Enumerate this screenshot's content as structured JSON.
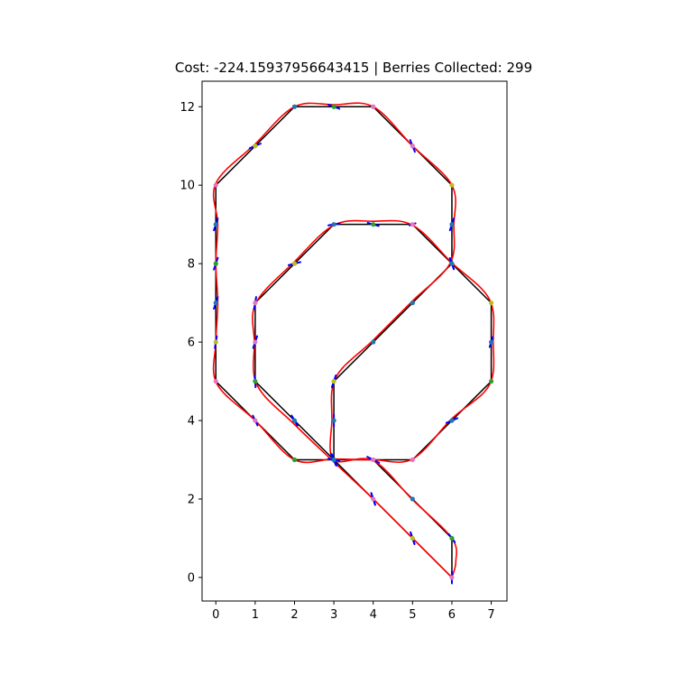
{
  "chart_data": {
    "type": "line",
    "title": "Cost: -224.15937956643415 | Berries Collected: 299",
    "xlabel": "",
    "ylabel": "",
    "xlim": [
      -0.35,
      7.4
    ],
    "ylim": [
      -0.6,
      12.65
    ],
    "x_ticks": [
      0,
      1,
      2,
      3,
      4,
      5,
      6,
      7
    ],
    "y_ticks": [
      0,
      2,
      4,
      6,
      8,
      10,
      12
    ],
    "grid": false,
    "legend": "none",
    "colors": {
      "track": "#000000",
      "smooth_path": "#ff0000",
      "heading_arrows": "#0000ff"
    },
    "series": [
      {
        "kind": "track",
        "points": [
          [
            6,
            0
          ],
          [
            5,
            1
          ],
          [
            4,
            2
          ],
          [
            3,
            3
          ],
          [
            2,
            4
          ],
          [
            1,
            5
          ],
          [
            1,
            6
          ],
          [
            1,
            7
          ],
          [
            2,
            8
          ],
          [
            3,
            9
          ],
          [
            4,
            9
          ],
          [
            5,
            9
          ],
          [
            6,
            8
          ],
          [
            7,
            7
          ],
          [
            7,
            6
          ],
          [
            7,
            5
          ],
          [
            6,
            4
          ],
          [
            5,
            3
          ],
          [
            4,
            3
          ],
          [
            3,
            3
          ],
          [
            2,
            3
          ],
          [
            1,
            4
          ],
          [
            0,
            5
          ],
          [
            0,
            6
          ],
          [
            0,
            7
          ],
          [
            0,
            8
          ],
          [
            0,
            9
          ],
          [
            0,
            10
          ],
          [
            1,
            11
          ],
          [
            2,
            12
          ],
          [
            3,
            12
          ],
          [
            4,
            12
          ],
          [
            5,
            11
          ],
          [
            6,
            10
          ],
          [
            6,
            9
          ],
          [
            6,
            8
          ],
          [
            5,
            7
          ],
          [
            4,
            6
          ],
          [
            3,
            5
          ],
          [
            3,
            4
          ],
          [
            3,
            3
          ],
          [
            4,
            3
          ],
          [
            5,
            2
          ],
          [
            6,
            1
          ],
          [
            6,
            0
          ]
        ]
      },
      {
        "kind": "smooth_path",
        "points": [
          [
            6,
            0
          ],
          [
            5,
            1
          ],
          [
            4,
            2
          ],
          [
            3.1,
            2.85
          ],
          [
            2,
            3.9
          ],
          [
            1.05,
            4.9
          ],
          [
            0.98,
            6
          ],
          [
            1.02,
            7
          ],
          [
            2,
            8.05
          ],
          [
            3,
            8.98
          ],
          [
            4,
            9.08
          ],
          [
            5,
            8.98
          ],
          [
            6,
            8.02
          ],
          [
            6.95,
            7.1
          ],
          [
            7.05,
            6
          ],
          [
            6.95,
            4.9
          ],
          [
            6,
            4.05
          ],
          [
            5,
            3.02
          ],
          [
            4,
            3
          ],
          [
            3,
            3.02
          ],
          [
            2,
            3
          ],
          [
            1,
            4
          ],
          [
            0.02,
            4.95
          ],
          [
            0,
            6
          ],
          [
            0.05,
            7
          ],
          [
            0,
            8
          ],
          [
            0.05,
            9
          ],
          [
            0,
            10.05
          ],
          [
            1,
            11.05
          ],
          [
            2,
            12
          ],
          [
            3,
            12.05
          ],
          [
            4,
            12
          ],
          [
            5,
            11
          ],
          [
            6,
            10
          ],
          [
            6.05,
            9
          ],
          [
            5.95,
            8
          ],
          [
            5,
            7.05
          ],
          [
            4,
            6.05
          ],
          [
            3.05,
            5.1
          ],
          [
            2.95,
            4
          ],
          [
            3,
            3
          ],
          [
            4,
            2.98
          ],
          [
            5,
            1.98
          ],
          [
            6,
            1
          ],
          [
            6.1,
            0.4
          ],
          [
            6,
            0
          ]
        ]
      },
      {
        "kind": "waypoints",
        "points": [
          {
            "x": 6,
            "y": 0,
            "c": "#e377c2"
          },
          {
            "x": 5,
            "y": 1,
            "c": "#bcbd22"
          },
          {
            "x": 4,
            "y": 2,
            "c": "#e377c2"
          },
          {
            "x": 3,
            "y": 3,
            "c": "#1f77b4"
          },
          {
            "x": 2,
            "y": 4,
            "c": "#1f77b4"
          },
          {
            "x": 1,
            "y": 5,
            "c": "#2ca02c"
          },
          {
            "x": 1,
            "y": 6,
            "c": "#e377c2"
          },
          {
            "x": 1,
            "y": 7,
            "c": "#e377c2"
          },
          {
            "x": 2,
            "y": 8,
            "c": "#bcbd22"
          },
          {
            "x": 3,
            "y": 9,
            "c": "#1f77b4"
          },
          {
            "x": 4,
            "y": 9,
            "c": "#2ca02c"
          },
          {
            "x": 5,
            "y": 9,
            "c": "#e377c2"
          },
          {
            "x": 6,
            "y": 8,
            "c": "#1f77b4"
          },
          {
            "x": 7,
            "y": 7,
            "c": "#bcbd22"
          },
          {
            "x": 7,
            "y": 6,
            "c": "#1f77b4"
          },
          {
            "x": 7,
            "y": 5,
            "c": "#2ca02c"
          },
          {
            "x": 6,
            "y": 4,
            "c": "#1f77b4"
          },
          {
            "x": 5,
            "y": 3,
            "c": "#e377c2"
          },
          {
            "x": 4,
            "y": 3,
            "c": "#e377c2"
          },
          {
            "x": 2,
            "y": 3,
            "c": "#2ca02c"
          },
          {
            "x": 1,
            "y": 4,
            "c": "#e377c2"
          },
          {
            "x": 0,
            "y": 5,
            "c": "#e377c2"
          },
          {
            "x": 0,
            "y": 6,
            "c": "#bcbd22"
          },
          {
            "x": 0,
            "y": 7,
            "c": "#1f77b4"
          },
          {
            "x": 0,
            "y": 8,
            "c": "#2ca02c"
          },
          {
            "x": 0,
            "y": 9,
            "c": "#1f77b4"
          },
          {
            "x": 0,
            "y": 10,
            "c": "#e377c2"
          },
          {
            "x": 1,
            "y": 11,
            "c": "#bcbd22"
          },
          {
            "x": 2,
            "y": 12,
            "c": "#1f77b4"
          },
          {
            "x": 3,
            "y": 12,
            "c": "#2ca02c"
          },
          {
            "x": 4,
            "y": 12,
            "c": "#e377c2"
          },
          {
            "x": 5,
            "y": 11,
            "c": "#e377c2"
          },
          {
            "x": 6,
            "y": 10,
            "c": "#bcbd22"
          },
          {
            "x": 6,
            "y": 9,
            "c": "#1f77b4"
          },
          {
            "x": 5,
            "y": 7,
            "c": "#1f77b4"
          },
          {
            "x": 4,
            "y": 6,
            "c": "#1f77b4"
          },
          {
            "x": 3,
            "y": 5,
            "c": "#bcbd22"
          },
          {
            "x": 3,
            "y": 4,
            "c": "#1f77b4"
          },
          {
            "x": 5,
            "y": 2,
            "c": "#1f77b4"
          },
          {
            "x": 6,
            "y": 1,
            "c": "#2ca02c"
          }
        ]
      },
      {
        "kind": "heading_arrows",
        "points": [
          {
            "x": 6,
            "y": 0,
            "dx": 0,
            "dy": 0.3
          },
          {
            "x": 5,
            "y": 1,
            "dx": 0.1,
            "dy": -0.3
          },
          {
            "x": 4,
            "y": 2,
            "dx": 0.1,
            "dy": -0.3
          },
          {
            "x": 3,
            "y": 3,
            "dx": 0.1,
            "dy": -0.28
          },
          {
            "x": 2,
            "y": 4,
            "dx": -0.15,
            "dy": 0.25
          },
          {
            "x": 1,
            "y": 5,
            "dx": 0.02,
            "dy": -0.3
          },
          {
            "x": 1,
            "y": 6,
            "dx": 0.1,
            "dy": 0.3
          },
          {
            "x": 1,
            "y": 7,
            "dx": 0.05,
            "dy": 0.3
          },
          {
            "x": 2,
            "y": 8,
            "dx": 0.3,
            "dy": 0.08
          },
          {
            "x": 3,
            "y": 9,
            "dx": 0.28,
            "dy": 0.05
          },
          {
            "x": 4,
            "y": 9,
            "dx": 0.28,
            "dy": -0.08
          },
          {
            "x": 5,
            "y": 9,
            "dx": 0.15,
            "dy": 0.05
          },
          {
            "x": 6,
            "y": 8,
            "dx": 0.1,
            "dy": -0.28
          },
          {
            "x": 7,
            "y": 6,
            "dx": -0.08,
            "dy": -0.25
          },
          {
            "x": 6,
            "y": 4,
            "dx": -0.28,
            "dy": -0.12
          },
          {
            "x": 4,
            "y": 3,
            "dx": -0.3,
            "dy": 0.15
          },
          {
            "x": 3,
            "y": 3,
            "dx": -0.28,
            "dy": 0.05
          },
          {
            "x": 2,
            "y": 4,
            "dx": -0.15,
            "dy": 0.25
          },
          {
            "x": 1,
            "y": 4,
            "dx": -0.12,
            "dy": 0.25
          },
          {
            "x": 0,
            "y": 6,
            "dx": 0.05,
            "dy": 0.3
          },
          {
            "x": 0,
            "y": 7,
            "dx": 0.1,
            "dy": 0.3
          },
          {
            "x": 0,
            "y": 8,
            "dx": 0.1,
            "dy": 0.3
          },
          {
            "x": 0,
            "y": 9,
            "dx": 0.1,
            "dy": 0.3
          },
          {
            "x": 1,
            "y": 11,
            "dx": 0.28,
            "dy": 0.12
          },
          {
            "x": 3,
            "y": 12,
            "dx": 0.28,
            "dy": -0.1
          },
          {
            "x": 5,
            "y": 11,
            "dx": 0.12,
            "dy": -0.3
          },
          {
            "x": 6,
            "y": 9,
            "dx": -0.1,
            "dy": -0.3
          },
          {
            "x": 6,
            "y": 8,
            "dx": 0.1,
            "dy": -0.28
          },
          {
            "x": 3,
            "y": 5,
            "dx": -0.1,
            "dy": -0.3
          },
          {
            "x": 3,
            "y": 4,
            "dx": 0,
            "dy": -0.3
          },
          {
            "x": 4,
            "y": 2,
            "dx": 0.1,
            "dy": -0.3
          },
          {
            "x": 5,
            "y": 1,
            "dx": 0.1,
            "dy": -0.3
          },
          {
            "x": 6,
            "y": 1,
            "dx": -0.15,
            "dy": 0.2
          },
          {
            "x": 3,
            "y": 3,
            "dx": 0.15,
            "dy": -0.3
          }
        ]
      }
    ]
  }
}
